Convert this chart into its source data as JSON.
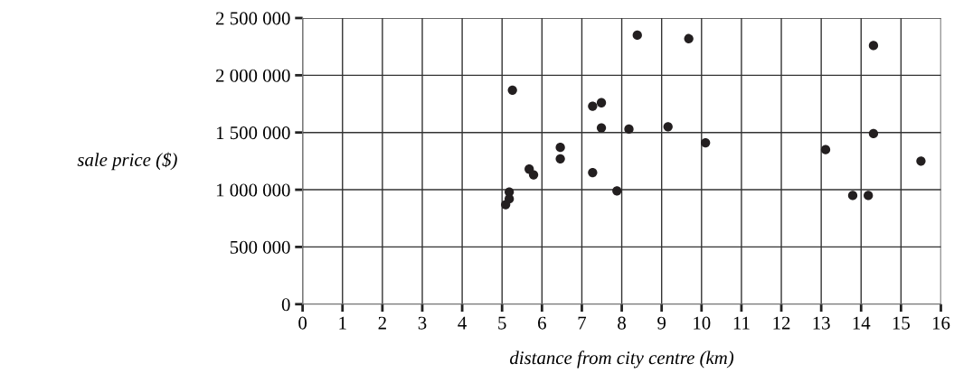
{
  "chart_data": {
    "type": "scatter",
    "xlabel": "distance from city centre (km)",
    "ylabel": "sale price ($)",
    "x": [
      8.39,
      9.68,
      5.26,
      7.27,
      7.49,
      7.49,
      8.18,
      9.16,
      10.1,
      6.46,
      6.46,
      5.68,
      5.79,
      7.27,
      7.88,
      5.18,
      5.18,
      5.09,
      14.31,
      14.31,
      13.11,
      15.5,
      13.79,
      14.18
    ],
    "values": [
      2350000,
      2320000,
      1870000,
      1730000,
      1760000,
      1540000,
      1530000,
      1550000,
      1410000,
      1370000,
      1270000,
      1180000,
      1130000,
      1150000,
      990000,
      980000,
      920000,
      870000,
      2260000,
      1490000,
      1350000,
      1250000,
      950000,
      950000
    ],
    "color": "#231f20",
    "marker": "circle",
    "xlim": [
      0,
      16
    ],
    "xticks": [
      0,
      1,
      2,
      3,
      4,
      5,
      6,
      7,
      8,
      9,
      10,
      11,
      12,
      13,
      14,
      15,
      16
    ],
    "ylim": [
      0,
      2500000
    ],
    "yticks": [
      0,
      {
        "value": 500000,
        "label": "500 000"
      },
      {
        "value": 1000000,
        "label": "1 000 000"
      },
      {
        "value": 1500000,
        "label": "1 500 000"
      },
      {
        "value": 2000000,
        "label": "2 000 000"
      },
      {
        "value": 2500000,
        "label": "2 500 000"
      }
    ],
    "grid": true
  }
}
